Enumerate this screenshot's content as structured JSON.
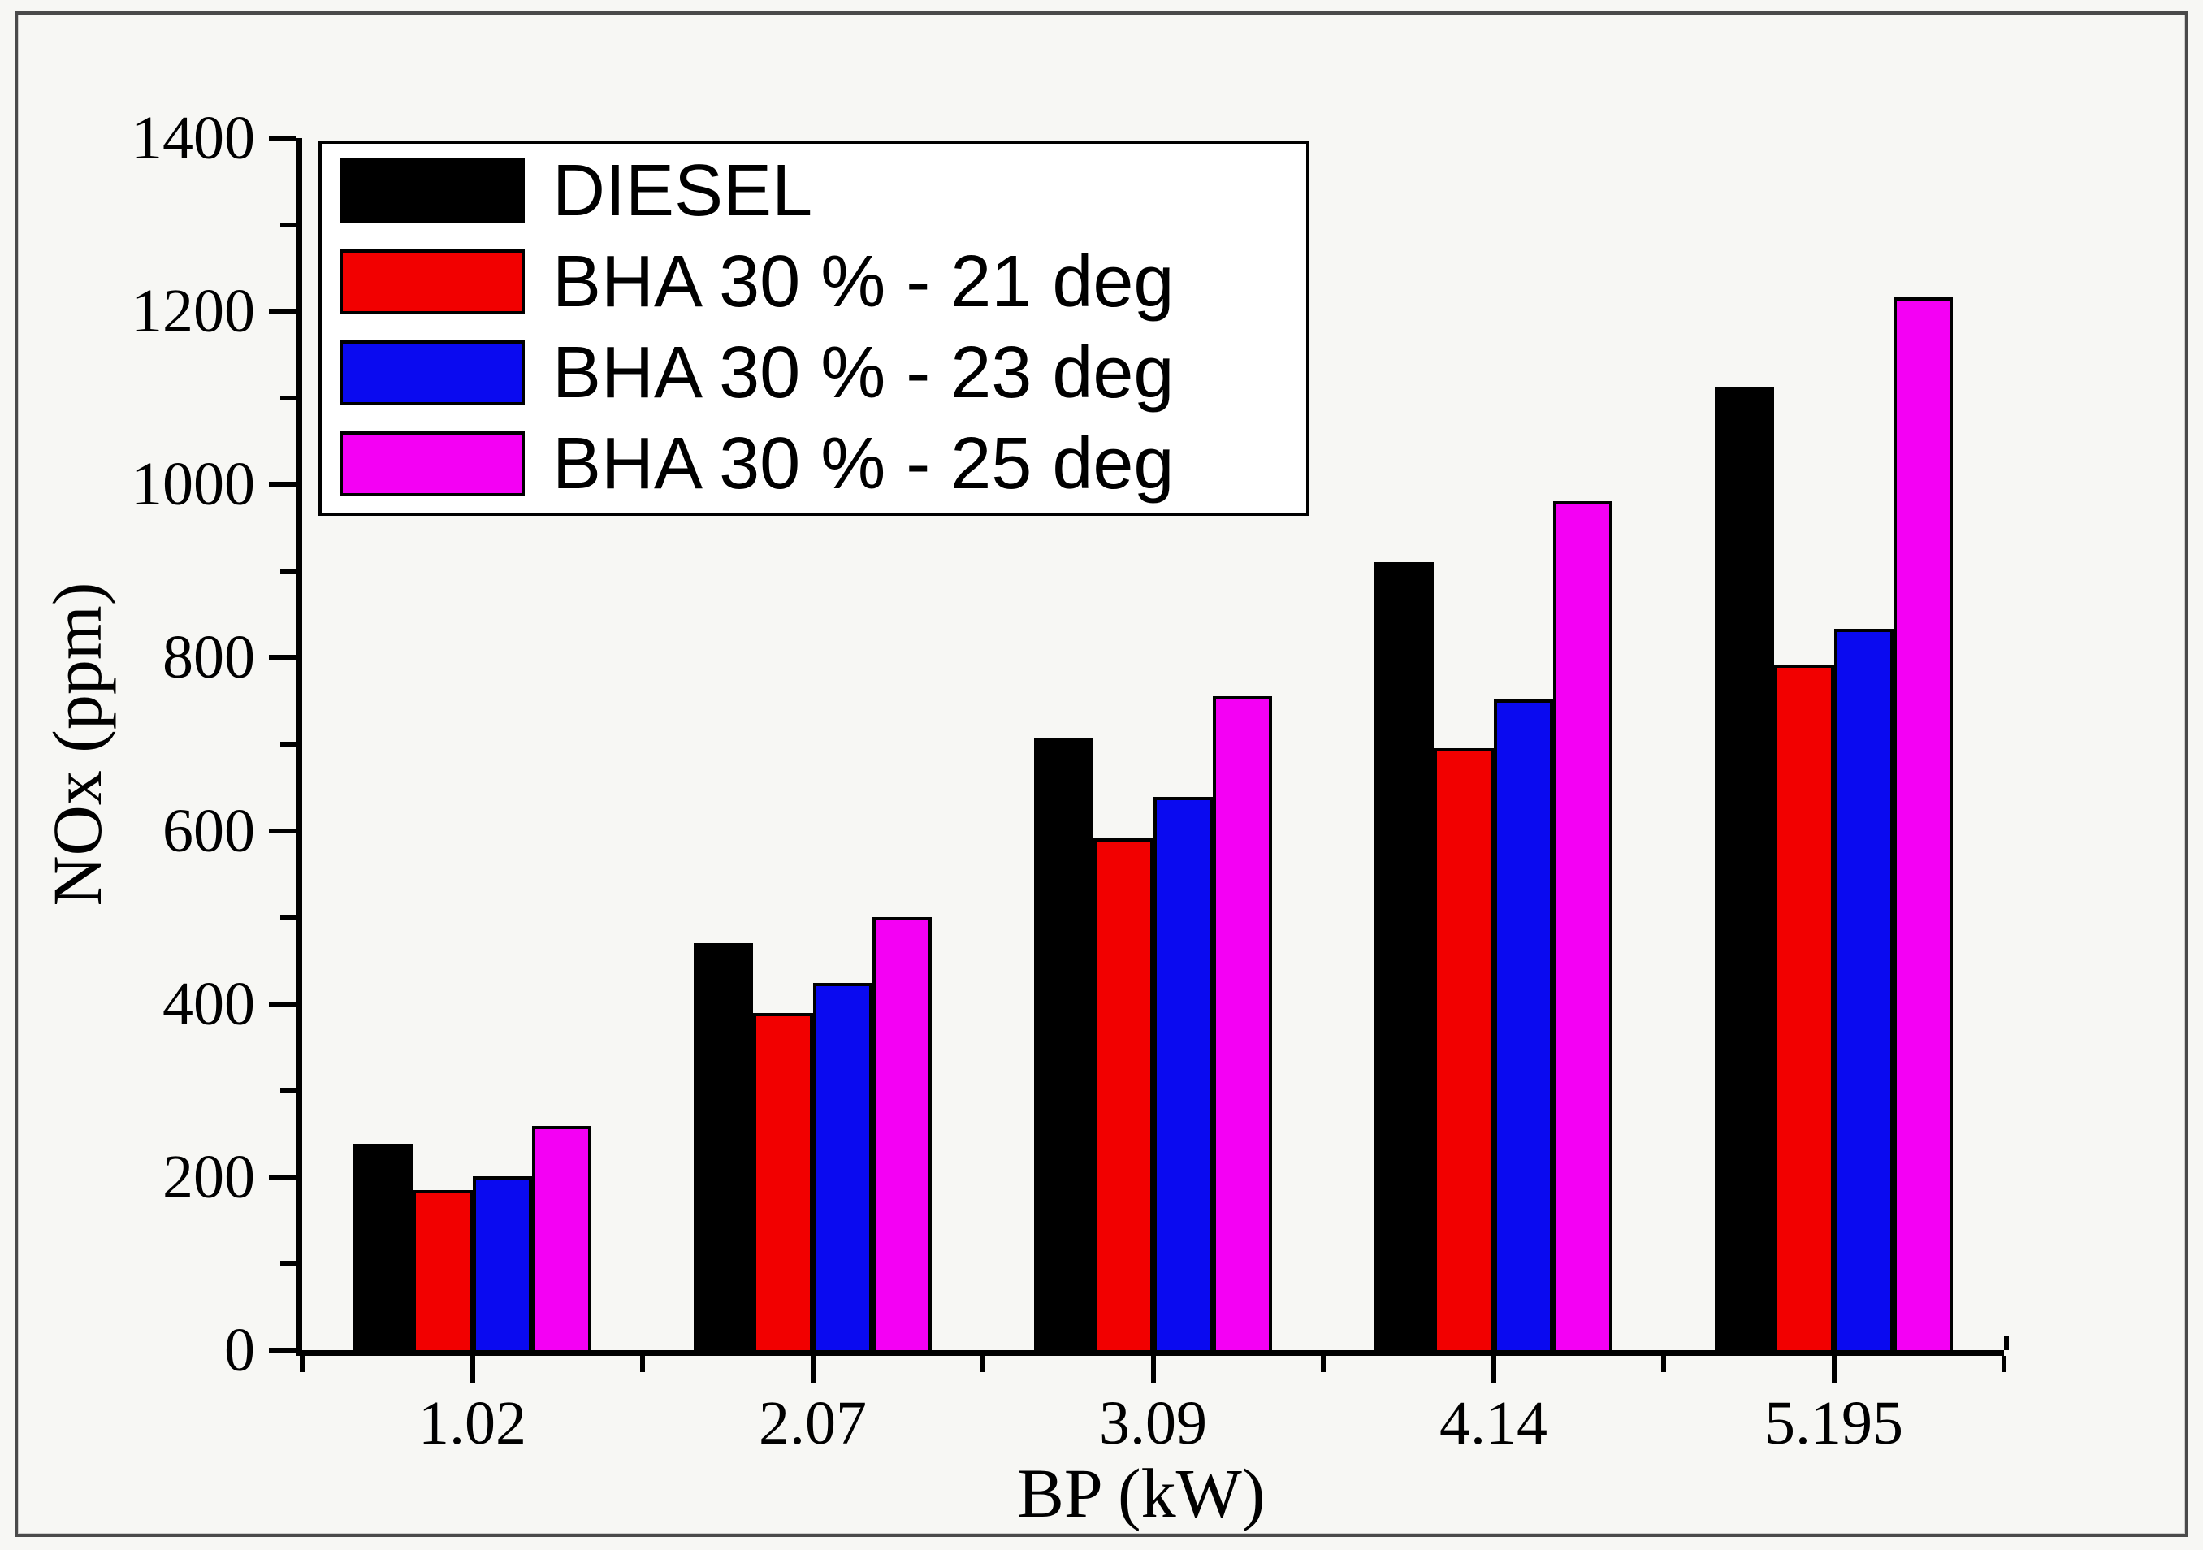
{
  "figure": {
    "background": "#f7f7f4",
    "frame_color": "#4a4a4a"
  },
  "chart_data": {
    "type": "bar",
    "title": "",
    "xlabel": "BP (kW)",
    "ylabel": "NOx (ppm)",
    "categories": [
      "1.02",
      "2.07",
      "3.09",
      "4.14",
      "5.195"
    ],
    "series": [
      {
        "name": "DIESEL",
        "color": "#000000",
        "values": [
          238,
          470,
          707,
          910,
          1113
        ]
      },
      {
        "name": "BHA 30 % - 21 deg",
        "color": "#f20000",
        "values": [
          185,
          389,
          591,
          695,
          792
        ]
      },
      {
        "name": "BHA 30 % - 23 deg",
        "color": "#0a0af0",
        "values": [
          201,
          424,
          639,
          752,
          833
        ]
      },
      {
        "name": "BHA 30 % - 25 deg",
        "color": "#f400f4",
        "values": [
          259,
          500,
          755,
          981,
          1216
        ]
      }
    ],
    "ylim": [
      0,
      1400
    ],
    "ytick_major_step": 200,
    "ytick_minor_step": 100,
    "yticks": [
      0,
      200,
      400,
      600,
      800,
      1000,
      1200,
      1400
    ],
    "legend_position": "top-left",
    "grid": false,
    "axis_color": "#000000"
  }
}
